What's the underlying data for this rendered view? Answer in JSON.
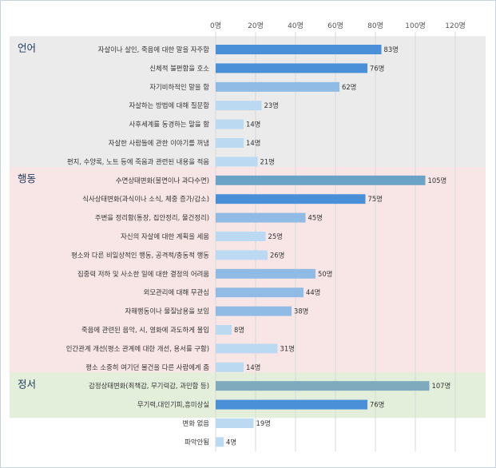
{
  "chart_data": {
    "type": "bar",
    "orientation": "horizontal",
    "title": "",
    "xlabel": "",
    "ylabel": "",
    "xlim": [
      0,
      120
    ],
    "x_ticks": [
      0,
      20,
      40,
      60,
      80,
      100,
      120
    ],
    "x_tick_labels": [
      "0명",
      "20명",
      "40명",
      "60명",
      "80명",
      "100명",
      "120명"
    ],
    "x_ticks_position": "top",
    "grid": true,
    "legend": "none",
    "value_suffix": "명",
    "groups": [
      {
        "label": "언어",
        "band_color": "#ebebeb",
        "start": 0,
        "end": 6
      },
      {
        "label": "행동",
        "band_color": "#f8e5e5",
        "start": 7,
        "end": 17
      },
      {
        "label": "정서",
        "band_color": "#e3eedb",
        "start": 18,
        "end": 19
      }
    ],
    "categories": [
      "자살이나 살인, 죽음에 대한 말을 자주함",
      "신체적 불편함을 호소",
      "자기비하적인 말을 함",
      "자살하는 방법에 대해 질문함",
      "사후세계를 동경하는 말을 함",
      "자살한 사람들에 관한 이야기를 꺼냄",
      "편지, 수양록, 노트 등에 죽음과 관련된 내용을 적음",
      "수면상태변화(불면이나 과다수면)",
      "식사상태변화(과식이나 소식, 체중 증가/감소)",
      "주변을 정리함(통장, 집안정리, 물건정리)",
      "자신의 자살에 대한 계획을 세움",
      "평소와 다른 비일상적인 행동, 공격적/충동적 행동",
      "집중력 저하 및 사소한 일에 대한 결정의 어려움",
      "외모관리에 대해 무관심",
      "자해행동이나 물질남용을 보임",
      "죽음에 관련된 음악, 시, 영화에 과도하게 몰입",
      "인간관계 개선(평소 관계에 대한 개선, 용서를 구함)",
      "평소 소중히 여기던 물건을 다른 사람에게 줌",
      "감정상태변화(죄책감, 무기력감, 과민함 등)",
      "무기력,대인기피,흥미상실",
      "변화 없음",
      "파악안됨"
    ],
    "values": [
      83,
      76,
      62,
      23,
      14,
      14,
      21,
      105,
      75,
      45,
      25,
      26,
      50,
      44,
      38,
      8,
      31,
      14,
      107,
      76,
      19,
      4
    ],
    "value_labels": [
      "83명",
      "76명",
      "62명",
      "23명",
      "14명",
      "14명",
      "21명",
      "105명",
      "75명",
      "45명",
      "25명",
      "26명",
      "50명",
      "44명",
      "38명",
      "8명",
      "31명",
      "14명",
      "107명",
      "76명",
      "19명",
      "4명"
    ],
    "bar_colors": [
      "#4a90d9",
      "#4a90d9",
      "#8fbbe4",
      "#bcd9f2",
      "#bcd9f2",
      "#bcd9f2",
      "#bcd9f2",
      "#6aa3c6",
      "#4a90d9",
      "#8fbbe4",
      "#bcd9f2",
      "#bcd9f2",
      "#8fbbe4",
      "#8fbbe4",
      "#8fbbe4",
      "#bcd9f2",
      "#bcd9f2",
      "#bcd9f2",
      "#7faabd",
      "#4a90d9",
      "#bcd9f2",
      "#bcd9f2"
    ],
    "grid_color": "#d9d9d9"
  }
}
